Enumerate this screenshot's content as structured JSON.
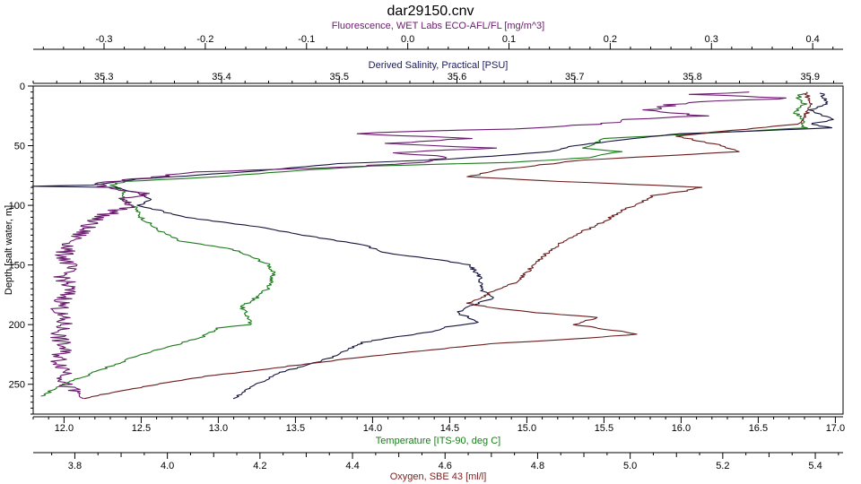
{
  "chart_data": {
    "type": "line",
    "title": "dar29150.cnv",
    "grid": false,
    "legend": "none",
    "y_axis": {
      "label": "Depth [salt water, m]",
      "range": [
        0,
        275
      ],
      "inverted": true,
      "ticks": [
        0,
        50,
        100,
        150,
        200,
        250
      ]
    },
    "x_axes": [
      {
        "id": "fluorescence",
        "label": "Fluorescence, WET Labs ECO-AFL/FL [mg/m^3]",
        "position": "top-outer",
        "color": "#6a1b6e",
        "range": [
          -0.37,
          0.43
        ],
        "ticks": [
          "-0.3",
          "-0.2",
          "-0.1",
          "0.0",
          "0.1",
          "0.2",
          "0.3",
          "0.4"
        ],
        "minor": 0.02
      },
      {
        "id": "salinity",
        "label": "Derived Salinity, Practical [PSU]",
        "position": "top-inner",
        "color": "#1a1a5e",
        "range": [
          35.24,
          35.928
        ],
        "ticks": [
          "35.3",
          "35.4",
          "35.5",
          "35.6",
          "35.7",
          "35.8",
          "35.9"
        ],
        "minor": 0.02
      },
      {
        "id": "temperature",
        "label": "Temperature [ITS-90, deg C]",
        "position": "bottom-inner",
        "color": "#1b7a1b",
        "range": [
          11.8,
          17.05
        ],
        "ticks": [
          "12.0",
          "12.5",
          "13.0",
          "13.5",
          "14.0",
          "14.5",
          "15.0",
          "15.5",
          "16.0",
          "16.5",
          "17.0"
        ],
        "minor": 0.1
      },
      {
        "id": "oxygen",
        "label": "Oxygen, SBE 43 [ml/l]",
        "position": "bottom-outer",
        "color": "#7a1f1f",
        "range": [
          3.71,
          5.46
        ],
        "ticks": [
          "3.8",
          "4.0",
          "4.2",
          "4.4",
          "4.6",
          "4.8",
          "5.0",
          "5.2",
          "5.4"
        ],
        "minor": 0.05
      }
    ],
    "series": [
      {
        "axis": "temperature",
        "color": "#1b7a1b",
        "points": [
          [
            16.78,
            6
          ],
          [
            16.76,
            10
          ],
          [
            16.8,
            15
          ],
          [
            16.74,
            22
          ],
          [
            16.79,
            28
          ],
          [
            16.8,
            35
          ],
          [
            16.4,
            38
          ],
          [
            15.8,
            42
          ],
          [
            15.5,
            44
          ],
          [
            15.45,
            48
          ],
          [
            15.35,
            52
          ],
          [
            15.6,
            55
          ],
          [
            15.4,
            60
          ],
          [
            14.9,
            64
          ],
          [
            14.0,
            67
          ],
          [
            13.5,
            71
          ],
          [
            13.0,
            76
          ],
          [
            12.4,
            80
          ],
          [
            12.3,
            83
          ],
          [
            12.4,
            88
          ],
          [
            12.38,
            95
          ],
          [
            12.45,
            100
          ],
          [
            12.5,
            110
          ],
          [
            12.6,
            120
          ],
          [
            12.75,
            130
          ],
          [
            13.0,
            135
          ],
          [
            13.1,
            137
          ],
          [
            13.15,
            140
          ],
          [
            13.25,
            145
          ],
          [
            13.33,
            150
          ],
          [
            13.35,
            155
          ],
          [
            13.35,
            160
          ],
          [
            13.34,
            165
          ],
          [
            13.32,
            170
          ],
          [
            13.22,
            180
          ],
          [
            13.15,
            185
          ],
          [
            13.2,
            195
          ],
          [
            13.2,
            200
          ],
          [
            13.0,
            203
          ],
          [
            12.9,
            210
          ],
          [
            12.7,
            218
          ],
          [
            12.5,
            225
          ],
          [
            12.4,
            230
          ],
          [
            12.2,
            240
          ],
          [
            12.0,
            250
          ],
          [
            11.85,
            260
          ]
        ]
      },
      {
        "axis": "salinity",
        "color": "#14143c",
        "points": [
          [
            35.91,
            6
          ],
          [
            35.915,
            15
          ],
          [
            35.9,
            20
          ],
          [
            35.92,
            28
          ],
          [
            35.9,
            32
          ],
          [
            35.92,
            35
          ],
          [
            35.79,
            40
          ],
          [
            35.75,
            44
          ],
          [
            35.7,
            50
          ],
          [
            35.68,
            55
          ],
          [
            35.64,
            58
          ],
          [
            35.58,
            62
          ],
          [
            35.5,
            65
          ],
          [
            35.42,
            72
          ],
          [
            35.33,
            78
          ],
          [
            35.29,
            83
          ],
          [
            35.24,
            84
          ],
          [
            35.31,
            85
          ],
          [
            35.33,
            90
          ],
          [
            35.34,
            95
          ],
          [
            35.33,
            100
          ],
          [
            35.37,
            110
          ],
          [
            35.43,
            118
          ],
          [
            35.47,
            125
          ],
          [
            35.52,
            133
          ],
          [
            35.54,
            140
          ],
          [
            35.58,
            145
          ],
          [
            35.61,
            150
          ],
          [
            35.62,
            160
          ],
          [
            35.62,
            170
          ],
          [
            35.63,
            178
          ],
          [
            35.61,
            185
          ],
          [
            35.6,
            190
          ],
          [
            35.62,
            198
          ],
          [
            35.59,
            202
          ],
          [
            35.58,
            206
          ],
          [
            35.55,
            210
          ],
          [
            35.52,
            215
          ],
          [
            35.5,
            225
          ],
          [
            35.48,
            232
          ],
          [
            35.45,
            240
          ],
          [
            35.43,
            250
          ],
          [
            35.42,
            256
          ],
          [
            35.41,
            262
          ]
        ]
      },
      {
        "axis": "fluorescence",
        "color": "#6a1b6e",
        "points": [
          [
            0.34,
            5
          ],
          [
            0.28,
            7
          ],
          [
            0.38,
            10
          ],
          [
            0.27,
            14
          ],
          [
            0.24,
            20
          ],
          [
            0.29,
            25
          ],
          [
            0.22,
            28
          ],
          [
            0.19,
            32
          ],
          [
            0.1,
            36
          ],
          [
            0.0,
            38
          ],
          [
            -0.05,
            40
          ],
          [
            0.06,
            44
          ],
          [
            -0.02,
            48
          ],
          [
            0.08,
            52
          ],
          [
            -0.01,
            56
          ],
          [
            0.04,
            60
          ],
          [
            0.01,
            64
          ],
          [
            -0.06,
            68
          ],
          [
            -0.2,
            72
          ],
          [
            -0.26,
            77
          ],
          [
            -0.31,
            82
          ],
          [
            -0.3,
            85
          ],
          [
            -0.26,
            90
          ],
          [
            -0.28,
            95
          ],
          [
            -0.27,
            100
          ],
          [
            -0.29,
            105
          ],
          [
            -0.31,
            112
          ],
          [
            -0.32,
            120
          ],
          [
            -0.33,
            130
          ],
          [
            -0.34,
            140
          ],
          [
            -0.335,
            150
          ],
          [
            -0.34,
            160
          ],
          [
            -0.335,
            170
          ],
          [
            -0.34,
            180
          ],
          [
            -0.345,
            190
          ],
          [
            -0.34,
            200
          ],
          [
            -0.345,
            210
          ],
          [
            -0.34,
            220
          ],
          [
            -0.345,
            230
          ],
          [
            -0.335,
            240
          ],
          [
            -0.34,
            250
          ],
          [
            -0.33,
            256
          ],
          [
            -0.32,
            262
          ]
        ]
      },
      {
        "axis": "oxygen",
        "color": "#6b1c1c",
        "points": [
          [
            5.38,
            5
          ],
          [
            5.39,
            15
          ],
          [
            5.38,
            25
          ],
          [
            5.36,
            32
          ],
          [
            5.2,
            38
          ],
          [
            5.1,
            42
          ],
          [
            5.15,
            46
          ],
          [
            5.2,
            50
          ],
          [
            5.23,
            55
          ],
          [
            5.1,
            58
          ],
          [
            4.9,
            62
          ],
          [
            4.72,
            70
          ],
          [
            4.65,
            76
          ],
          [
            4.85,
            80
          ],
          [
            5.1,
            84
          ],
          [
            5.15,
            85
          ],
          [
            5.12,
            88
          ],
          [
            5.05,
            92
          ],
          [
            5.02,
            98
          ],
          [
            4.98,
            105
          ],
          [
            4.95,
            112
          ],
          [
            4.92,
            118
          ],
          [
            4.88,
            125
          ],
          [
            4.85,
            132
          ],
          [
            4.82,
            140
          ],
          [
            4.8,
            148
          ],
          [
            4.78,
            155
          ],
          [
            4.75,
            165
          ],
          [
            4.7,
            172
          ],
          [
            4.68,
            178
          ],
          [
            4.65,
            182
          ],
          [
            4.7,
            186
          ],
          [
            4.8,
            190
          ],
          [
            4.93,
            194
          ],
          [
            4.88,
            200
          ],
          [
            5.02,
            208
          ],
          [
            4.88,
            212
          ],
          [
            4.7,
            216
          ],
          [
            4.55,
            222
          ],
          [
            4.4,
            228
          ],
          [
            4.2,
            238
          ],
          [
            4.05,
            245
          ],
          [
            3.95,
            252
          ],
          [
            3.88,
            257
          ],
          [
            3.82,
            262
          ]
        ]
      }
    ]
  }
}
